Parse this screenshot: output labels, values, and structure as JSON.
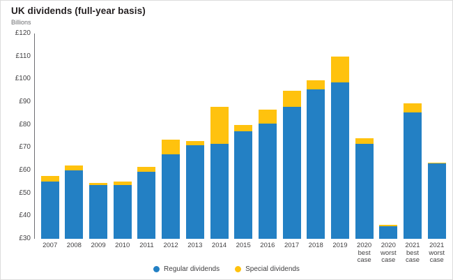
{
  "title": "UK dividends (full-year basis)",
  "subtitle": "Billions",
  "legend": [
    {
      "label": "Regular dividends",
      "color": "#2380c4"
    },
    {
      "label": "Special dividends",
      "color": "#ffc20e"
    }
  ],
  "chart_data": {
    "type": "bar",
    "stacked": true,
    "title": "UK dividends (full-year basis)",
    "ylabel": "Billions",
    "currency_prefix": "£",
    "ylim": [
      30,
      120
    ],
    "ytick_step": 10,
    "ytick_labels": [
      "£120",
      "£110",
      "£100",
      "£90",
      "£80",
      "£70",
      "£60",
      "£50",
      "£40",
      "£30"
    ],
    "grid": false,
    "legend_position": "bottom",
    "categories": [
      "2007",
      "2008",
      "2009",
      "2010",
      "2011",
      "2012",
      "2013",
      "2014",
      "2015",
      "2016",
      "2017",
      "2018",
      "2019",
      "2020\nbest\ncase",
      "2020\nworst\ncase",
      "2021\nbest\ncase",
      "2021\nworst\ncase"
    ],
    "series": [
      {
        "name": "Regular dividends",
        "color": "#2380c4",
        "values": [
          55,
          60,
          53.5,
          53.5,
          59.5,
          67,
          71,
          71.5,
          77,
          80.5,
          88,
          95.5,
          98.5,
          71.5,
          35.5,
          85.5,
          63
        ]
      },
      {
        "name": "Special dividends",
        "color": "#ffc20e",
        "values": [
          2.5,
          2,
          1,
          1.5,
          2,
          6.5,
          2,
          16.5,
          3,
          6,
          7,
          4,
          11.5,
          2.5,
          0.5,
          4,
          0.5
        ]
      }
    ],
    "totals": [
      57.5,
      62,
      54.5,
      55,
      61.5,
      73.5,
      73,
      88,
      80,
      86.5,
      95,
      99.5,
      110,
      74,
      36,
      89.5,
      63.5
    ]
  }
}
